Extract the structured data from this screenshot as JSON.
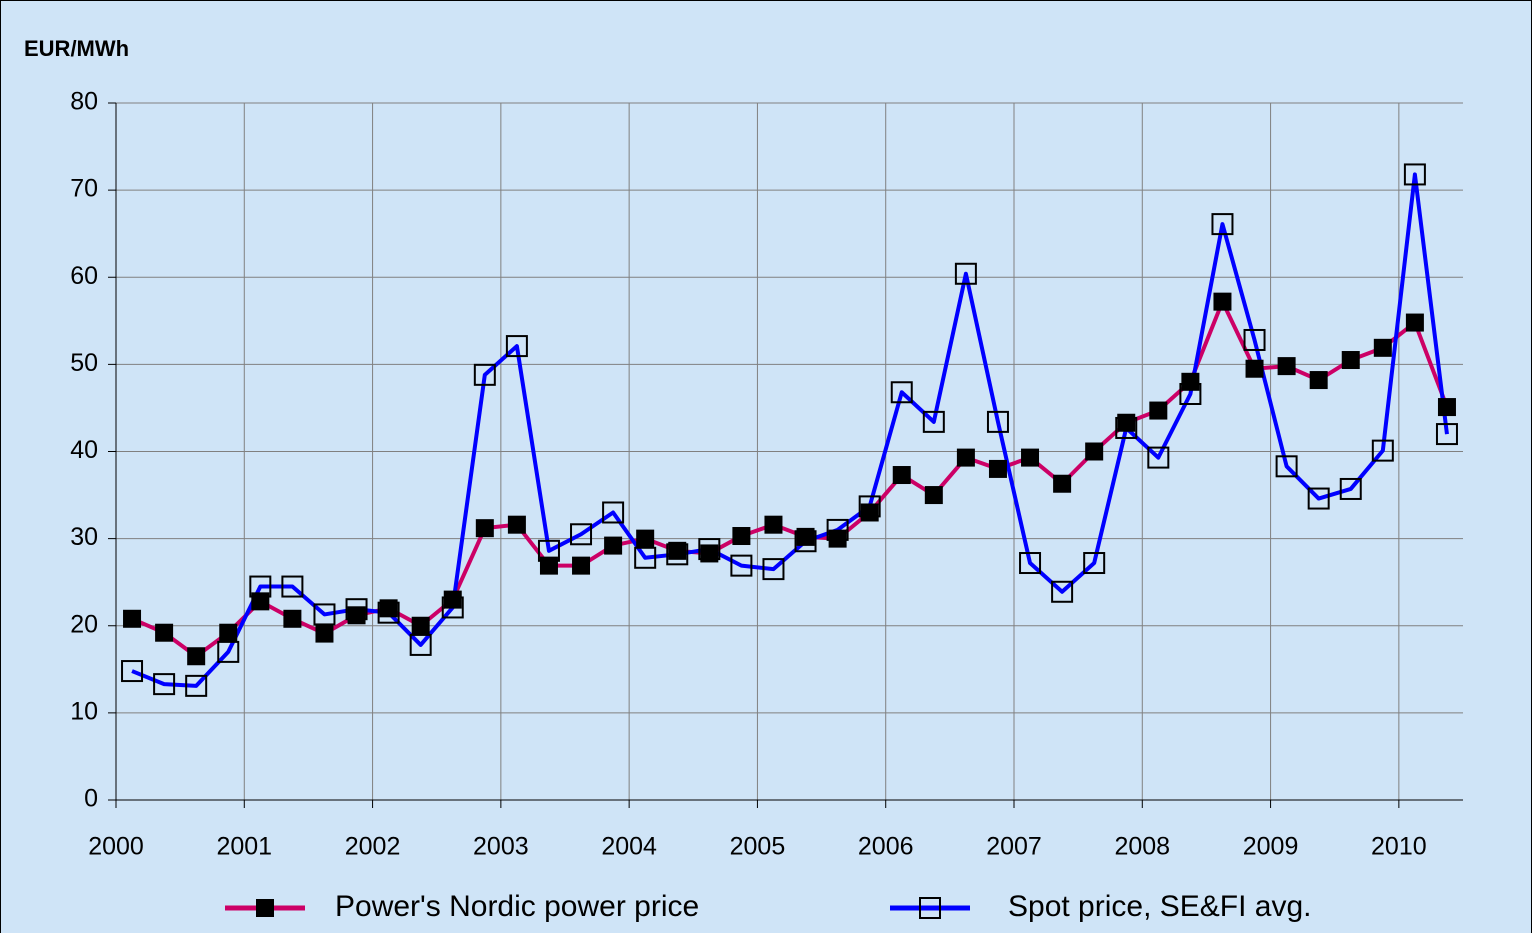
{
  "chart_data": {
    "type": "line",
    "y_label": "EUR/MWh",
    "x": [
      2000.125,
      2000.375,
      2000.625,
      2000.875,
      2001.125,
      2001.375,
      2001.625,
      2001.875,
      2002.125,
      2002.375,
      2002.625,
      2002.875,
      2003.125,
      2003.375,
      2003.625,
      2003.875,
      2004.125,
      2004.375,
      2004.625,
      2004.875,
      2005.125,
      2005.375,
      2005.625,
      2005.875,
      2006.125,
      2006.375,
      2006.625,
      2006.875,
      2007.125,
      2007.375,
      2007.625,
      2007.875,
      2008.125,
      2008.375,
      2008.625,
      2008.875,
      2009.125,
      2009.375,
      2009.625,
      2009.875,
      2010.125,
      2010.375
    ],
    "series": [
      {
        "name": "Power's Nordic power price",
        "color": "#cc0066",
        "marker": "filled",
        "values": [
          20.8,
          19.2,
          16.5,
          19.2,
          22.8,
          20.8,
          19.1,
          21.2,
          22.0,
          20.0,
          23.0,
          31.2,
          31.6,
          26.9,
          26.9,
          29.2,
          30.0,
          28.6,
          28.3,
          30.3,
          31.6,
          30.2,
          30.0,
          33.0,
          37.3,
          35.0,
          39.3,
          38.0,
          39.3,
          36.3,
          40.0,
          43.3,
          44.7,
          48.0,
          57.2,
          49.5,
          49.8,
          48.2,
          50.5,
          51.9,
          54.8,
          45.1
        ]
      },
      {
        "name": "Spot price, SE&FI avg.",
        "color": "#0000ff",
        "marker": "open",
        "values": [
          14.8,
          13.3,
          13.1,
          17.0,
          24.5,
          24.5,
          21.3,
          21.9,
          21.5,
          17.8,
          22.1,
          48.8,
          52.1,
          28.6,
          30.5,
          33.0,
          27.8,
          28.2,
          28.8,
          26.9,
          26.5,
          29.7,
          31.0,
          33.7,
          46.8,
          43.4,
          60.4,
          43.4,
          27.2,
          23.9,
          27.2,
          42.7,
          39.3,
          46.6,
          66.1,
          52.8,
          38.3,
          34.6,
          35.7,
          40.1,
          71.8,
          42.0
        ]
      }
    ],
    "xlim": [
      2000,
      2010.5
    ],
    "xticks": [
      2000,
      2001,
      2002,
      2003,
      2004,
      2005,
      2006,
      2007,
      2008,
      2009,
      2010
    ],
    "ylim": [
      0,
      80
    ],
    "yticks": [
      0,
      10,
      20,
      30,
      40,
      50,
      60,
      70,
      80
    ],
    "grid": true
  }
}
